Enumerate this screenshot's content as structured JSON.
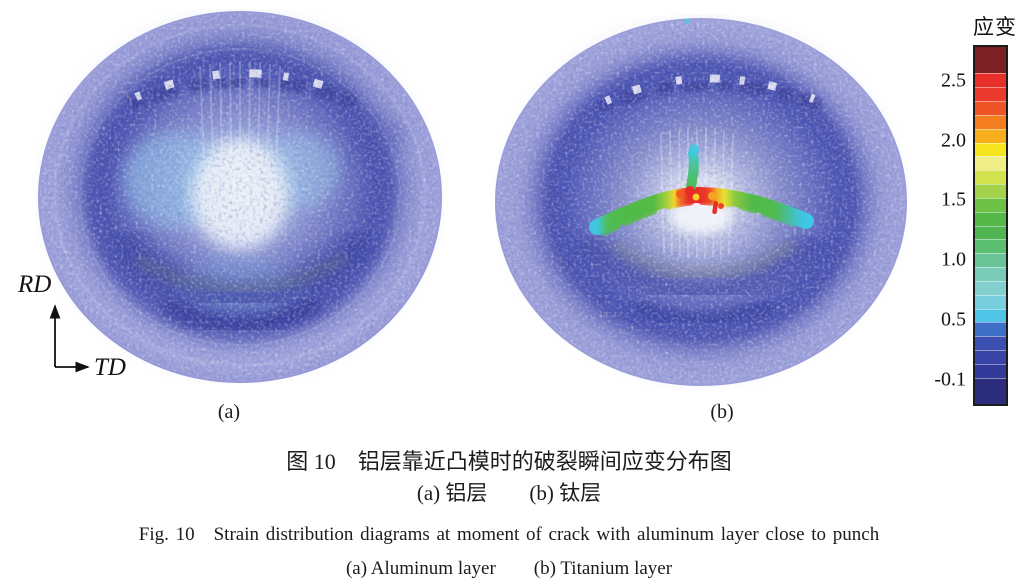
{
  "figure": {
    "axis_indicator": {
      "vertical_label": "RD",
      "horizontal_label": "TD"
    },
    "panels": [
      {
        "key": "a",
        "label": "(a)"
      },
      {
        "key": "b",
        "label": "(b)"
      }
    ]
  },
  "colorbar": {
    "title": "应变",
    "tick_labels": [
      "2.5",
      "2.0",
      "1.5",
      "1.0",
      "0.5",
      "-0.1"
    ],
    "segment_colors": [
      "#7c2123",
      "#e7302a",
      "#ea3b2e",
      "#ef5426",
      "#f47d1f",
      "#f8ae1b",
      "#f6e51e",
      "#f0ee86",
      "#d2e24e",
      "#a4d24a",
      "#70c247",
      "#55b848",
      "#50b553",
      "#5cbe71",
      "#68c497",
      "#7accb8",
      "#83cfce",
      "#79cfdd",
      "#4fc4e6",
      "#3e6ec6",
      "#3c50b2",
      "#3845a6",
      "#313a98",
      "#2c2c7c"
    ]
  },
  "captions": {
    "zh_title": "图 10　铝层靠近凸模时的破裂瞬间应变分布图",
    "zh_panels": "(a) 铝层　　(b) 钛层",
    "en_title": "Fig. 10　Strain distribution diagrams at moment of crack with aluminum layer close to punch",
    "en_panels": "(a) Aluminum layer　　(b) Titanium layer"
  },
  "palette": {
    "disk_body": "#7e84c8",
    "disk_rim": "#9a9ed8",
    "dark_ring": "#4a52ae",
    "center_highlight": "#eef2f8",
    "center_cyan": "#9cc9e9",
    "crack_red": "#e92b28",
    "crack_orange": "#f2a822",
    "crack_yellow": "#e8e134",
    "crack_green": "#52ba48",
    "crack_cyan": "#41c6e2"
  }
}
